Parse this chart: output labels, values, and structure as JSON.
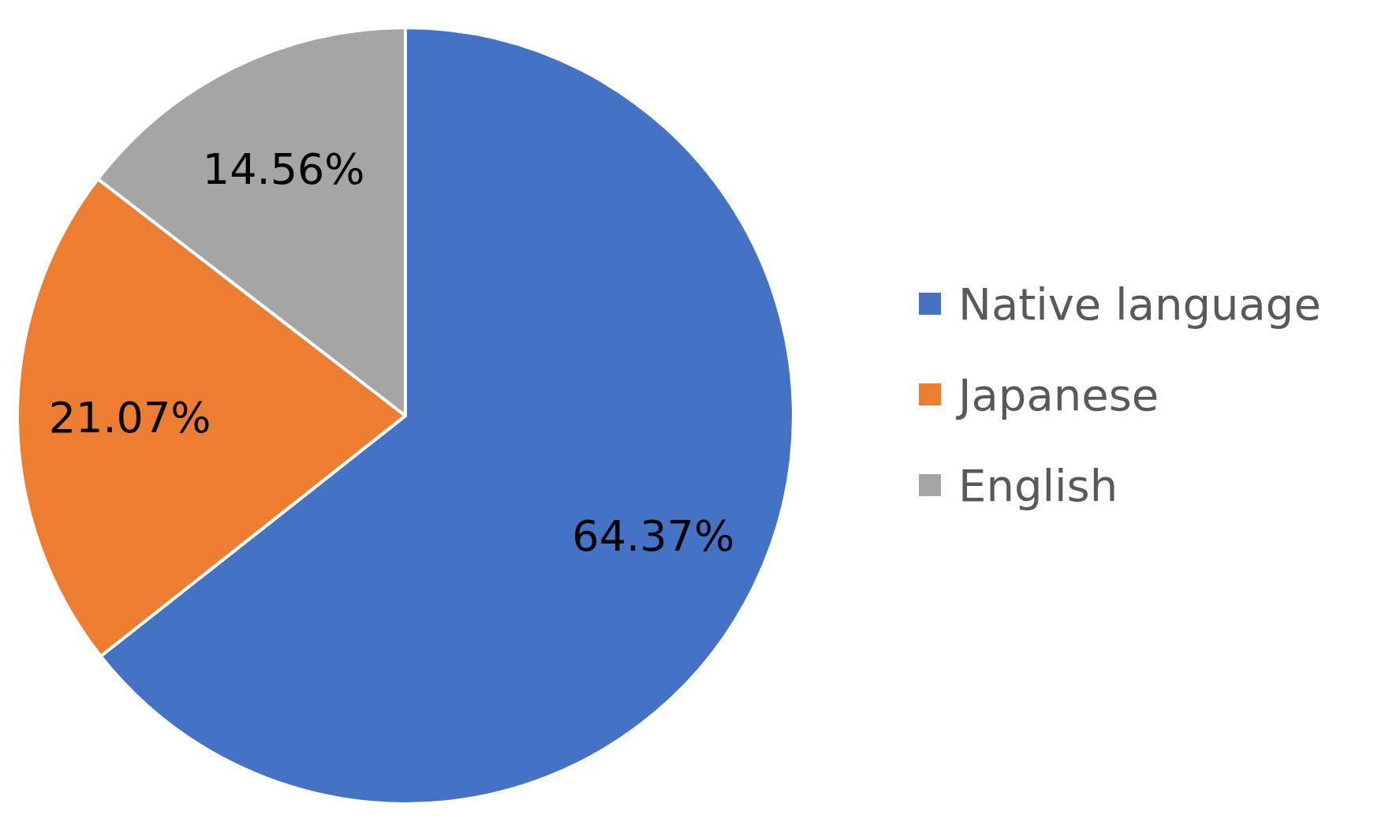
{
  "chart_data": {
    "type": "pie",
    "categories": [
      "Native language",
      "Japanese",
      "English"
    ],
    "values": [
      64.37,
      21.07,
      14.56
    ],
    "colors": [
      "#4472c4",
      "#ed7d31",
      "#a5a5a5"
    ],
    "value_labels": [
      "64.37%",
      "21.07%",
      "14.56%"
    ],
    "legend": "right"
  }
}
